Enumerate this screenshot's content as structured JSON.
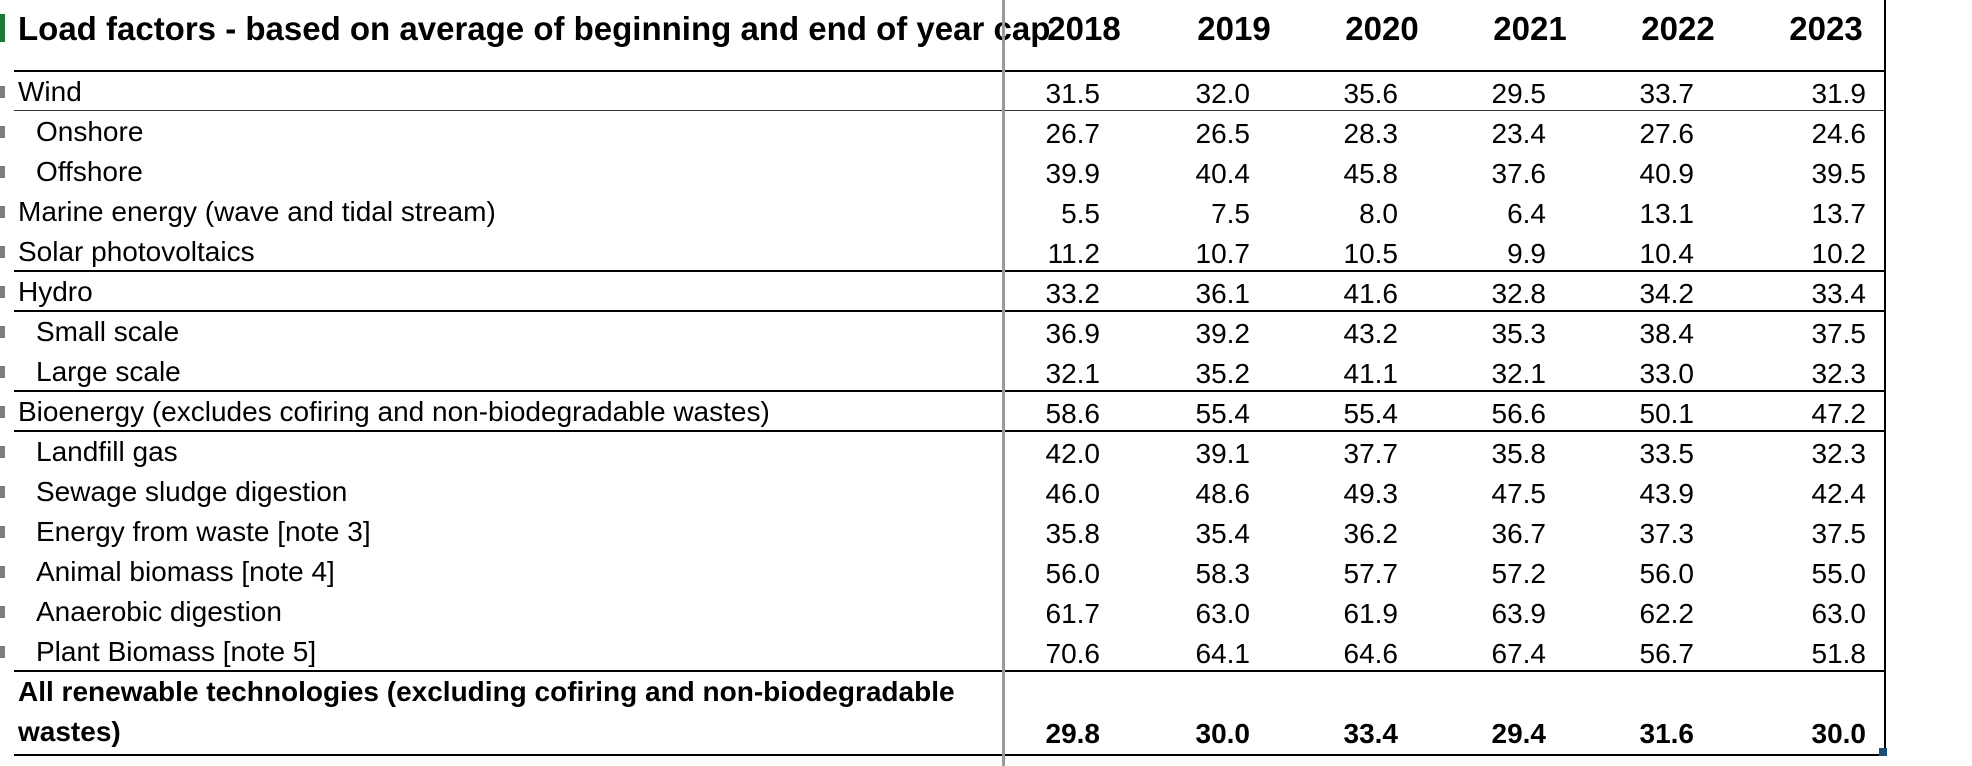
{
  "table": {
    "title": "Load factors - based on average of beginning and end of year cap",
    "years": [
      "2018",
      "2019",
      "2020",
      "2021",
      "2022",
      "2023"
    ],
    "rows": [
      {
        "label": "Wind",
        "values": [
          "31.5",
          "32.0",
          "35.6",
          "29.5",
          "33.7",
          "31.9"
        ]
      },
      {
        "label": "Onshore",
        "values": [
          "26.7",
          "26.5",
          "28.3",
          "23.4",
          "27.6",
          "24.6"
        ]
      },
      {
        "label": "Offshore",
        "values": [
          "39.9",
          "40.4",
          "45.8",
          "37.6",
          "40.9",
          "39.5"
        ]
      },
      {
        "label": "Marine energy (wave and tidal stream)",
        "values": [
          "5.5",
          "7.5",
          "8.0",
          "6.4",
          "13.1",
          "13.7"
        ]
      },
      {
        "label": "Solar photovoltaics",
        "values": [
          "11.2",
          "10.7",
          "10.5",
          "9.9",
          "10.4",
          "10.2"
        ]
      },
      {
        "label": "Hydro",
        "values": [
          "33.2",
          "36.1",
          "41.6",
          "32.8",
          "34.2",
          "33.4"
        ]
      },
      {
        "label": "Small scale",
        "values": [
          "36.9",
          "39.2",
          "43.2",
          "35.3",
          "38.4",
          "37.5"
        ]
      },
      {
        "label": "Large scale",
        "values": [
          "32.1",
          "35.2",
          "41.1",
          "32.1",
          "33.0",
          "32.3"
        ]
      },
      {
        "label": "Bioenergy (excludes cofiring and non-biodegradable wastes)",
        "values": [
          "58.6",
          "55.4",
          "55.4",
          "56.6",
          "50.1",
          "47.2"
        ]
      },
      {
        "label": "Landfill gas",
        "values": [
          "42.0",
          "39.1",
          "37.7",
          "35.8",
          "33.5",
          "32.3"
        ]
      },
      {
        "label": "Sewage sludge digestion",
        "values": [
          "46.0",
          "48.6",
          "49.3",
          "47.5",
          "43.9",
          "42.4"
        ]
      },
      {
        "label": "Energy from waste [note 3]",
        "values": [
          "35.8",
          "35.4",
          "36.2",
          "36.7",
          "37.3",
          "37.5"
        ]
      },
      {
        "label": "Animal biomass [note 4]",
        "values": [
          "56.0",
          "58.3",
          "57.7",
          "57.2",
          "56.0",
          "55.0"
        ]
      },
      {
        "label": "Anaerobic digestion",
        "values": [
          "61.7",
          "63.0",
          "61.9",
          "63.9",
          "62.2",
          "63.0"
        ]
      },
      {
        "label": "Plant Biomass [note 5]",
        "values": [
          "70.6",
          "64.1",
          "64.6",
          "67.4",
          "56.7",
          "51.8"
        ]
      }
    ],
    "total": {
      "label_line1": "All renewable technologies (excluding cofiring and non-biodegradable",
      "label_line2": "wastes)",
      "values": [
        "29.8",
        "30.0",
        "33.4",
        "29.4",
        "31.6",
        "30.0"
      ]
    }
  }
}
